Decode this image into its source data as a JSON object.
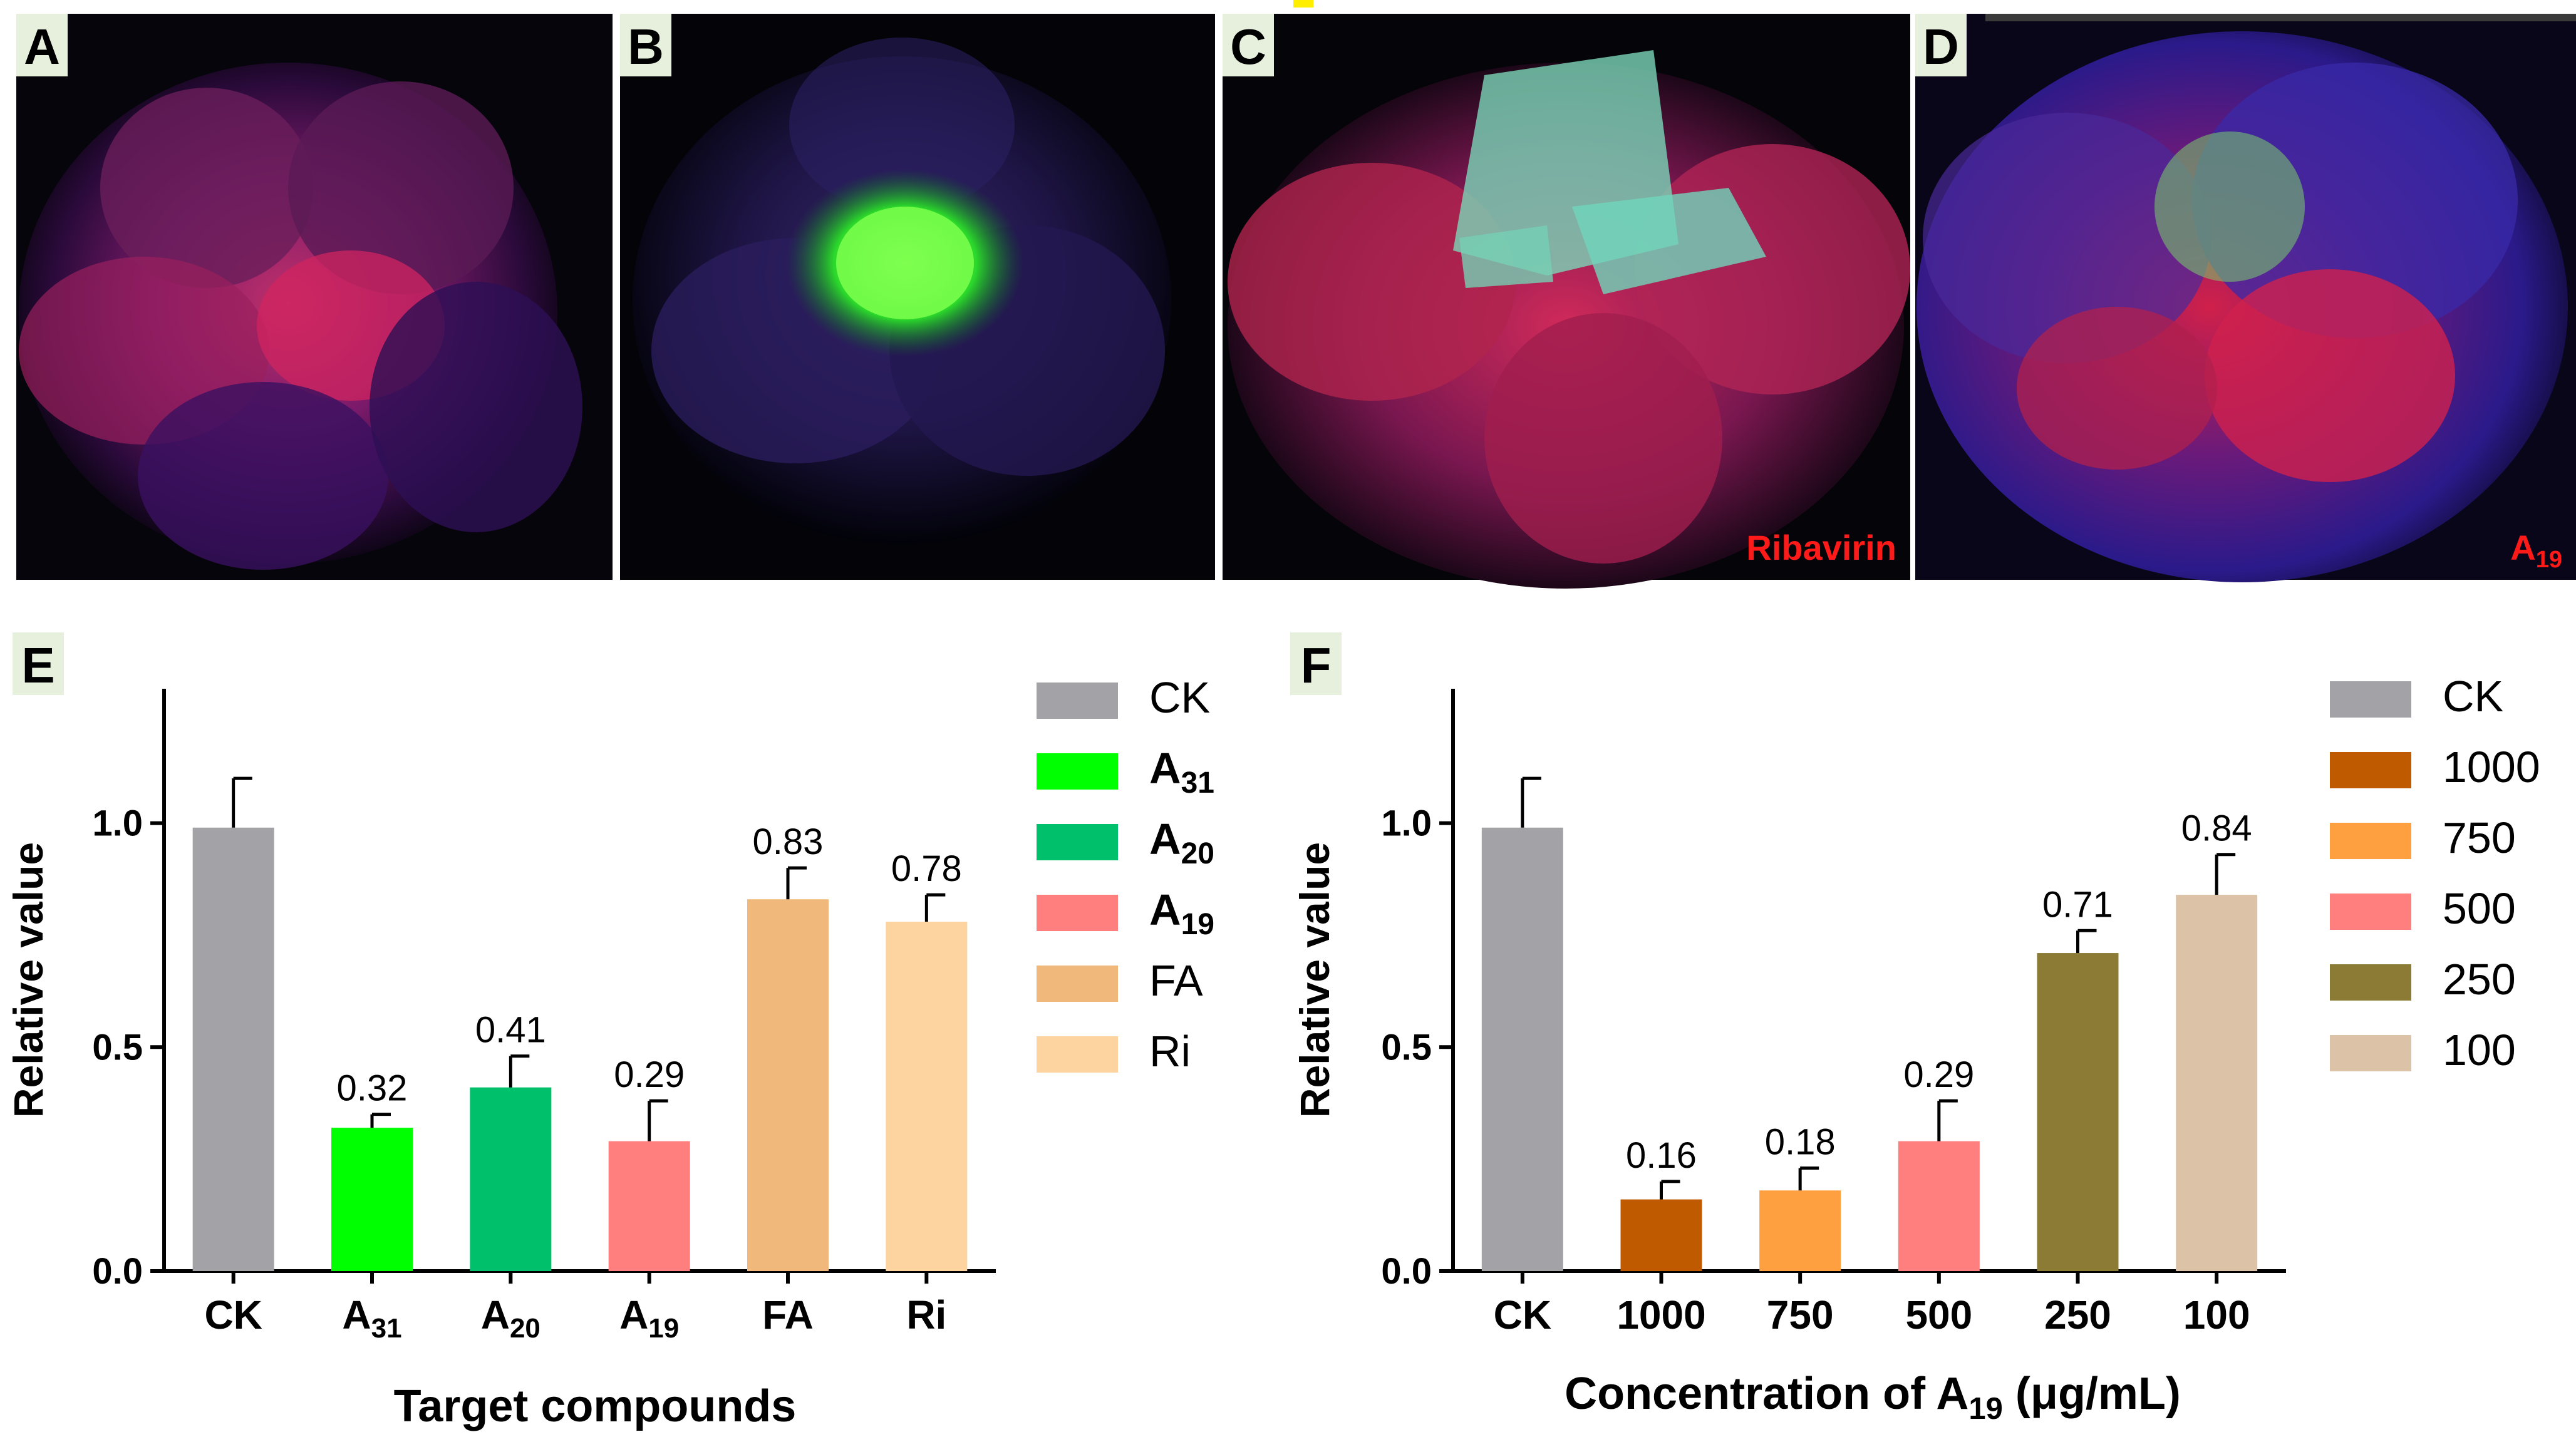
{
  "photos": [
    {
      "letter": "A",
      "caption": "",
      "caption_sub": ""
    },
    {
      "letter": "B",
      "caption": "",
      "caption_sub": ""
    },
    {
      "letter": "C",
      "caption": "Ribavirin",
      "caption_sub": ""
    },
    {
      "letter": "D",
      "caption": "A",
      "caption_sub": "19"
    }
  ],
  "colors": {
    "photo_label": "#ff1a1a",
    "letter_bg": "#e6f0dc",
    "axis": "#000000"
  },
  "chart_data": [
    {
      "panel": "E",
      "type": "bar",
      "categories": [
        {
          "main": "CK",
          "sub": ""
        },
        {
          "main": "A",
          "sub": "31"
        },
        {
          "main": "A",
          "sub": "20"
        },
        {
          "main": "A",
          "sub": "19"
        },
        {
          "main": "FA",
          "sub": ""
        },
        {
          "main": "Ri",
          "sub": ""
        }
      ],
      "values": [
        0.99,
        0.32,
        0.41,
        0.29,
        0.83,
        0.78
      ],
      "errors": [
        0.11,
        0.03,
        0.07,
        0.09,
        0.07,
        0.06
      ],
      "value_labels": [
        "",
        "0.32",
        "0.41",
        "0.29",
        "0.83",
        "0.78"
      ],
      "colors": [
        "#a3a2a7",
        "#00ff00",
        "#00c06b",
        "#ff7f7f",
        "#f0b87b",
        "#fdd4a0"
      ],
      "legend": [
        {
          "main": "CK",
          "sub": "",
          "bold": false
        },
        {
          "main": "A",
          "sub": "31",
          "bold": true
        },
        {
          "main": "A",
          "sub": "20",
          "bold": true
        },
        {
          "main": "A",
          "sub": "19",
          "bold": true
        },
        {
          "main": "FA",
          "sub": "",
          "bold": false
        },
        {
          "main": "Ri",
          "sub": "",
          "bold": false
        }
      ],
      "ylabel": "Relative value",
      "xlabel": {
        "main": "Target compounds",
        "sub": "",
        "suffix": ""
      },
      "yticks": [
        "0.0",
        "0.5",
        "1.0"
      ],
      "ylim": [
        0,
        1.3
      ],
      "legend_position": "right"
    },
    {
      "panel": "F",
      "type": "bar",
      "categories": [
        {
          "main": "CK",
          "sub": ""
        },
        {
          "main": "1000",
          "sub": ""
        },
        {
          "main": "750",
          "sub": ""
        },
        {
          "main": "500",
          "sub": ""
        },
        {
          "main": "250",
          "sub": ""
        },
        {
          "main": "100",
          "sub": ""
        }
      ],
      "values": [
        0.99,
        0.16,
        0.18,
        0.29,
        0.71,
        0.84
      ],
      "errors": [
        0.11,
        0.04,
        0.05,
        0.09,
        0.05,
        0.09
      ],
      "value_labels": [
        "",
        "0.16",
        "0.18",
        "0.29",
        "0.71",
        "0.84"
      ],
      "colors": [
        "#a3a2a7",
        "#c05a00",
        "#ffa040",
        "#ff7f7f",
        "#8b7b35",
        "#dcc3a8"
      ],
      "legend": [
        {
          "main": "CK",
          "sub": "",
          "bold": false
        },
        {
          "main": "1000",
          "sub": "",
          "bold": false
        },
        {
          "main": "750",
          "sub": "",
          "bold": false
        },
        {
          "main": "500",
          "sub": "",
          "bold": false
        },
        {
          "main": "250",
          "sub": "",
          "bold": false
        },
        {
          "main": "100",
          "sub": "",
          "bold": false
        }
      ],
      "ylabel": "Relative value",
      "xlabel": {
        "main": "Concentration of A",
        "sub": "19",
        "suffix": " (μg/mL)"
      },
      "yticks": [
        "0.0",
        "0.5",
        "1.0"
      ],
      "ylim": [
        0,
        1.3
      ],
      "legend_position": "right"
    }
  ]
}
